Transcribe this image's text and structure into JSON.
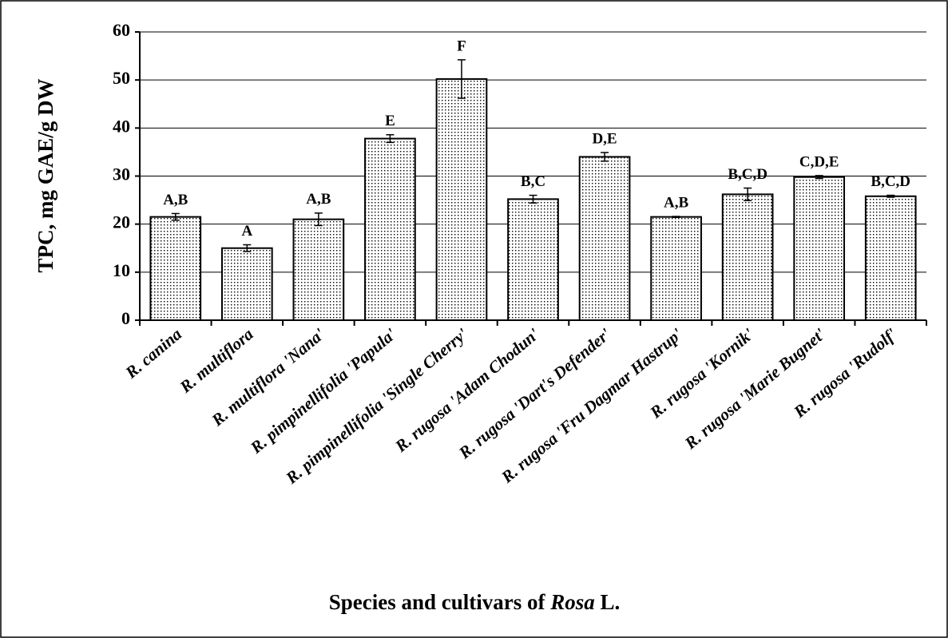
{
  "chart_data": {
    "type": "bar",
    "ylabel": "TPC, mg GAE/g DW",
    "xlabel_parts": [
      "Species and cultivars of ",
      "Rosa",
      " L."
    ],
    "categories": [
      "R. canina",
      "R. multiflora",
      "R. multiflora 'Nana'",
      "R. pimpinellifolia 'Papula'",
      "R. pimpinellifolia 'Single Cherry'",
      "R. rugosa 'Adam Chodun'",
      "R. rugosa 'Dart's Defender'",
      "R. rugosa 'Fru Dagmar Hastrup'",
      "R. rugosa 'Kornik'",
      "R. rugosa 'Marie Bugnet'",
      "R. rugosa 'Rudolf'"
    ],
    "values": [
      21.5,
      15,
      21,
      37.8,
      50.2,
      25.2,
      34,
      21.5,
      26.2,
      29.8,
      25.8
    ],
    "errors": [
      0.7,
      0.7,
      1.3,
      0.8,
      4,
      0.8,
      0.9,
      0.1,
      1.3,
      0.3,
      0.2
    ],
    "letters": [
      "A,B",
      "A",
      "A,B",
      "E",
      "F",
      "B,C",
      "D,E",
      "A,B",
      "B,C,D",
      "C,D,E",
      "B,C,D"
    ],
    "color": "#000000",
    "ylim": [
      0,
      60
    ],
    "yticks": [
      0,
      10,
      20,
      30,
      40,
      50,
      60
    ],
    "grid": true
  }
}
